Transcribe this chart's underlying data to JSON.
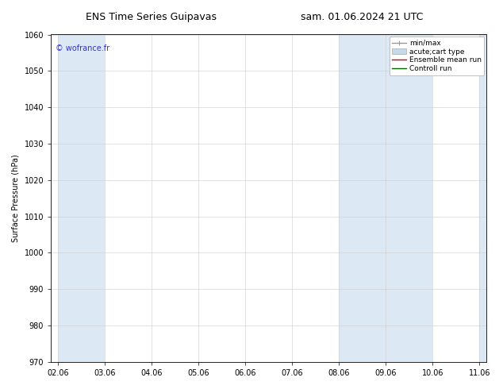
{
  "title_left": "ENS Time Series Guipavas",
  "title_right": "sam. 01.06.2024 21 UTC",
  "ylabel": "Surface Pressure (hPa)",
  "ylim": [
    970,
    1060
  ],
  "yticks": [
    970,
    980,
    990,
    1000,
    1010,
    1020,
    1030,
    1040,
    1050,
    1060
  ],
  "xtick_labels": [
    "02.06",
    "03.06",
    "04.06",
    "05.06",
    "06.06",
    "07.06",
    "08.06",
    "09.06",
    "10.06",
    "11.06"
  ],
  "watermark": "© wofrance.fr",
  "watermark_color": "#3333cc",
  "bg_color": "#ffffff",
  "plot_bg_color": "#ffffff",
  "shaded_bands": [
    {
      "xstart": 0.0,
      "xend": 1.0,
      "color": "#dce9f5"
    },
    {
      "xstart": 6.0,
      "xend": 7.0,
      "color": "#dce9f5"
    },
    {
      "xstart": 7.0,
      "xend": 8.0,
      "color": "#dce9f5"
    },
    {
      "xstart": 9.0,
      "xend": 10.0,
      "color": "#dce9f5"
    },
    {
      "xstart": 10.0,
      "xend": 11.0,
      "color": "#dce9f5"
    }
  ],
  "legend_entries": [
    {
      "label": "min/max",
      "color": "#999999",
      "lw": 1.0
    },
    {
      "label": "acute;cart type",
      "color": "#c5d9ed",
      "lw": 7
    },
    {
      "label": "Ensemble mean run",
      "color": "#dd0000",
      "lw": 1.0
    },
    {
      "label": "Controll run",
      "color": "#006600",
      "lw": 1.0
    }
  ],
  "title_fontsize": 9,
  "label_fontsize": 7,
  "tick_fontsize": 7,
  "legend_fontsize": 6.5,
  "watermark_fontsize": 7
}
